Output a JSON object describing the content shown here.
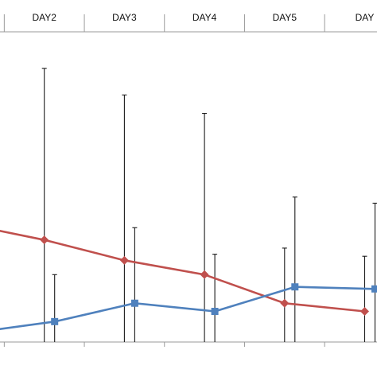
{
  "chart_data": {
    "type": "line",
    "categories": [
      "",
      "DAY2",
      "DAY3",
      "DAY4",
      "DAY5",
      "DAY"
    ],
    "series": [
      {
        "color": "#c0504d",
        "marker": "diamond",
        "values": [
          48,
          40,
          30,
          23,
          9,
          5
        ],
        "error_upper": [
          null,
          124,
          111,
          102,
          36,
          32
        ],
        "error_lower": [
          null,
          40,
          30,
          23,
          9,
          5
        ]
      },
      {
        "color": "#4f81bd",
        "marker": "square",
        "values": [
          -6,
          0,
          9,
          5,
          17,
          16
        ],
        "error_upper": [
          null,
          23,
          46,
          33,
          61,
          58
        ],
        "error_lower": [
          null,
          0,
          9,
          5,
          17,
          16
        ]
      }
    ],
    "ylim": [
      -10,
      140
    ],
    "grid": false,
    "legend": "none",
    "title": "",
    "xlabel": "",
    "ylabel": ""
  }
}
